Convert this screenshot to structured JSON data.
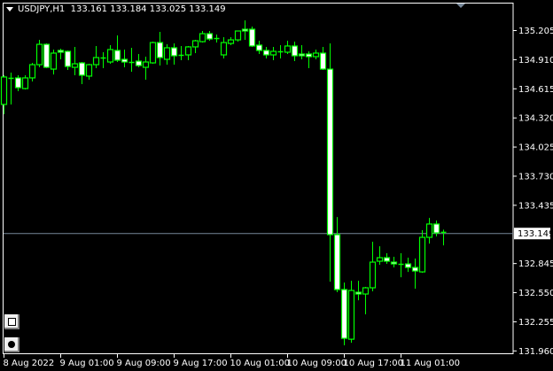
{
  "header": {
    "symbol": "USDJPY,H1",
    "ohlc_text": "133.161 133.184 133.025 133.149"
  },
  "colors": {
    "background": "#000000",
    "candle_outline": "#00ff00",
    "bear_fill": "#ffffff",
    "bull_fill": "#000000",
    "axis": "#ffffff",
    "bid_line": "#778899"
  },
  "buttons": [
    {
      "icon": "square-icon"
    },
    {
      "icon": "circle-icon"
    }
  ],
  "chart_data": {
    "type": "candlestick",
    "timeframe": "H1",
    "ylim": [
      131.96,
      135.3
    ],
    "yticks": [
      "135.205",
      "134.910",
      "134.615",
      "134.320",
      "134.025",
      "133.730",
      "133.435",
      "132.845",
      "132.550",
      "132.255",
      "131.960"
    ],
    "current_price": "133.149",
    "xticks": [
      {
        "candle": 0,
        "label": "8 Aug 2022"
      },
      {
        "candle": 8,
        "label": "9 Aug 01:00"
      },
      {
        "candle": 16,
        "label": "9 Aug 09:00"
      },
      {
        "candle": 24,
        "label": "9 Aug 17:00"
      },
      {
        "candle": 32,
        "label": "10 Aug 01:00"
      },
      {
        "candle": 40,
        "label": "10 Aug 09:00"
      },
      {
        "candle": 48,
        "label": "10 Aug 17:00"
      },
      {
        "candle": 56,
        "label": "11 Aug 01:00"
      }
    ],
    "ohlc": [
      [
        134.452,
        134.748,
        134.353,
        134.73
      ],
      [
        134.721,
        134.774,
        134.452,
        134.721
      ],
      [
        134.721,
        134.748,
        134.586,
        134.622
      ],
      [
        134.613,
        134.748,
        134.604,
        134.721
      ],
      [
        134.721,
        134.873,
        134.685,
        134.855
      ],
      [
        134.855,
        135.106,
        134.828,
        135.061
      ],
      [
        135.061,
        135.07,
        134.819,
        134.828
      ],
      [
        134.81,
        135.008,
        134.756,
        134.972
      ],
      [
        134.999,
        135.017,
        134.909,
        134.981
      ],
      [
        134.99,
        134.999,
        134.801,
        134.837
      ],
      [
        134.828,
        135.035,
        134.748,
        134.864
      ],
      [
        134.873,
        134.882,
        134.658,
        134.748
      ],
      [
        134.739,
        134.864,
        134.703,
        134.855
      ],
      [
        134.855,
        135.044,
        134.819,
        134.927
      ],
      [
        134.927,
        134.981,
        134.819,
        134.918
      ],
      [
        134.882,
        135.053,
        134.864,
        135.008
      ],
      [
        134.999,
        135.151,
        134.882,
        134.9
      ],
      [
        134.909,
        135.008,
        134.828,
        134.882
      ],
      [
        134.882,
        135.026,
        134.783,
        134.882
      ],
      [
        134.891,
        134.963,
        134.828,
        134.846
      ],
      [
        134.828,
        134.936,
        134.703,
        134.882
      ],
      [
        134.873,
        135.088,
        134.864,
        135.079
      ],
      [
        135.079,
        135.187,
        134.846,
        134.927
      ],
      [
        134.909,
        135.061,
        134.855,
        135.026
      ],
      [
        135.026,
        135.07,
        134.855,
        134.945
      ],
      [
        134.954,
        135.044,
        134.9,
        134.954
      ],
      [
        134.954,
        135.044,
        134.9,
        135.035
      ],
      [
        135.035,
        135.106,
        134.972,
        135.097
      ],
      [
        135.088,
        135.196,
        135.079,
        135.169
      ],
      [
        135.169,
        135.196,
        135.097,
        135.115
      ],
      [
        135.124,
        135.16,
        135.079,
        135.124
      ],
      [
        134.954,
        135.133,
        134.918,
        135.079
      ],
      [
        135.07,
        135.133,
        135.053,
        135.106
      ],
      [
        135.106,
        135.196,
        135.088,
        135.196
      ],
      [
        135.214,
        135.304,
        135.106,
        135.196
      ],
      [
        135.214,
        135.241,
        135.035,
        135.044
      ],
      [
        135.053,
        135.097,
        134.963,
        134.999
      ],
      [
        134.999,
        135.035,
        134.918,
        134.954
      ],
      [
        134.954,
        135.035,
        134.9,
        134.99
      ],
      [
        134.99,
        135.053,
        134.918,
        134.99
      ],
      [
        134.981,
        135.097,
        134.963,
        135.044
      ],
      [
        135.044,
        135.088,
        134.891,
        134.945
      ],
      [
        134.963,
        135.053,
        134.909,
        134.945
      ],
      [
        134.963,
        134.99,
        134.819,
        134.936
      ],
      [
        134.936,
        135.008,
        134.909,
        134.972
      ],
      [
        134.972,
        135.035,
        134.801,
        134.81
      ],
      [
        134.81,
        135.07,
        132.657,
        133.133
      ],
      [
        133.133,
        133.312,
        132.55,
        132.577
      ],
      [
        132.577,
        132.648,
        132.012,
        132.083
      ],
      [
        132.074,
        132.666,
        132.038,
        132.568
      ],
      [
        132.55,
        132.666,
        132.469,
        132.532
      ],
      [
        132.532,
        132.604,
        132.326,
        132.595
      ],
      [
        132.595,
        133.061,
        132.559,
        132.855
      ],
      [
        132.864,
        133.016,
        132.828,
        132.9
      ],
      [
        132.9,
        132.945,
        132.837,
        132.864
      ],
      [
        132.855,
        132.909,
        132.801,
        132.837
      ],
      [
        132.837,
        132.945,
        132.702,
        132.837
      ],
      [
        132.837,
        132.9,
        132.756,
        132.801
      ],
      [
        132.801,
        132.891,
        132.586,
        132.765
      ],
      [
        132.756,
        133.178,
        132.747,
        133.106
      ],
      [
        133.106,
        133.303,
        133.043,
        133.241
      ],
      [
        133.241,
        133.276,
        133.115,
        133.151
      ],
      [
        133.161,
        133.184,
        133.025,
        133.149
      ]
    ]
  }
}
